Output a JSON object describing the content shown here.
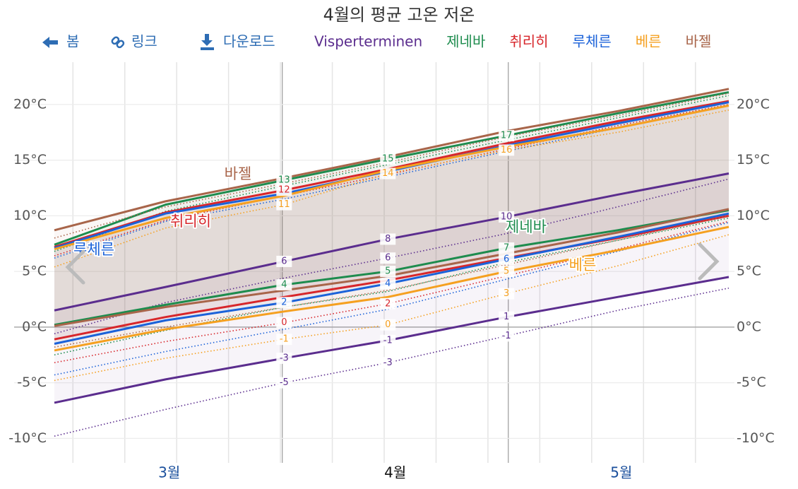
{
  "title": "4월의 평균 고온 저온",
  "toolbar": [
    "봄",
    "링크",
    "다운로드"
  ],
  "chart_data": {
    "type": "line",
    "xlim": [
      0,
      91
    ],
    "x": [
      0,
      15,
      31,
      45,
      61,
      76,
      91
    ],
    "xticks": [
      {
        "value": 15.5,
        "label": "3월"
      },
      {
        "value": 46,
        "label": "4월"
      },
      {
        "value": 76.5,
        "label": "5월"
      }
    ],
    "ylim": [
      -12.2,
      23.8
    ],
    "yticks": [
      {
        "value": -10,
        "label": "-10°C"
      },
      {
        "value": -5,
        "label": "-5°C"
      },
      {
        "value": 0,
        "label": "0°C"
      },
      {
        "value": 5,
        "label": "5°C"
      },
      {
        "value": 10,
        "label": "10°C"
      },
      {
        "value": 15,
        "label": "15°C"
      },
      {
        "value": 20,
        "label": "20°C"
      }
    ],
    "grid": true,
    "series": [
      {
        "name": "Visperterminen",
        "color": "#5b2d8e",
        "high": {
          "values": [
            1.5,
            3.6,
            5.9,
            7.9,
            9.9,
            11.9,
            13.8
          ],
          "value_labels": [
            null,
            null,
            "6",
            "8",
            "10",
            null,
            null
          ]
        },
        "low": {
          "values": [
            -6.8,
            -4.7,
            -2.8,
            -1.2,
            0.9,
            2.7,
            4.5
          ],
          "value_labels": [
            null,
            null,
            "-3",
            "-1",
            "1",
            null,
            null
          ]
        },
        "feels_high": {
          "values": [
            -0.6,
            2.2,
            4.4,
            6.2,
            8.4,
            10.8,
            13.3
          ],
          "value_labels": [
            null,
            null,
            null,
            "6",
            null,
            null,
            null
          ]
        },
        "feels_low": {
          "values": [
            -9.8,
            -7.4,
            -5.0,
            -3.2,
            -0.8,
            1.5,
            3.5
          ],
          "value_labels": [
            null,
            null,
            "-5",
            "-3",
            "-1",
            null,
            null
          ]
        }
      },
      {
        "name": "제네바",
        "color": "#1e8c4e",
        "high": {
          "values": [
            7.4,
            11.0,
            13.2,
            15.1,
            17.2,
            19.2,
            21.1
          ],
          "value_labels": [
            null,
            null,
            "13",
            "15",
            "17",
            null,
            null
          ]
        },
        "low": {
          "values": [
            0.2,
            2.0,
            3.8,
            5.0,
            7.1,
            8.7,
            10.5
          ],
          "value_labels": [
            null,
            null,
            "4",
            "5",
            "7",
            null,
            null
          ]
        },
        "feels_high": {
          "values": [
            6.8,
            10.4,
            12.7,
            14.6,
            16.8,
            18.8,
            20.8
          ],
          "value_labels": [
            null,
            null,
            null,
            null,
            null,
            null,
            null
          ]
        },
        "feels_low": {
          "values": [
            -2.5,
            -0.3,
            1.8,
            3.2,
            5.8,
            7.8,
            9.8
          ],
          "value_labels": [
            null,
            null,
            null,
            null,
            null,
            null,
            null
          ]
        }
      },
      {
        "name": "취리히",
        "color": "#d7262b",
        "high": {
          "values": [
            7.2,
            10.3,
            12.3,
            14.2,
            16.5,
            18.5,
            20.3
          ],
          "value_labels": [
            null,
            null,
            "12",
            null,
            null,
            null,
            null
          ]
        },
        "low": {
          "values": [
            -1.1,
            0.9,
            2.7,
            4.2,
            6.2,
            8.0,
            10.0
          ],
          "value_labels": [
            null,
            null,
            null,
            null,
            null,
            null,
            null
          ]
        },
        "feels_high": {
          "values": [
            6.4,
            9.6,
            11.8,
            13.7,
            16.0,
            18.1,
            20.0
          ],
          "value_labels": [
            null,
            null,
            null,
            null,
            null,
            null,
            null
          ]
        },
        "feels_low": {
          "values": [
            -3.2,
            -1.3,
            0.4,
            2.1,
            4.6,
            7.0,
            9.5
          ],
          "value_labels": [
            null,
            null,
            "0",
            "2",
            null,
            null,
            null
          ]
        }
      },
      {
        "name": "루체른",
        "color": "#1b62d9",
        "high": {
          "values": [
            7.1,
            10.2,
            12.0,
            14.0,
            16.3,
            18.3,
            20.2
          ],
          "value_labels": [
            null,
            null,
            null,
            null,
            null,
            null,
            null
          ]
        },
        "low": {
          "values": [
            -1.5,
            0.6,
            2.2,
            3.9,
            6.1,
            8.1,
            10.2
          ],
          "value_labels": [
            null,
            null,
            "2",
            "4",
            "6",
            null,
            null
          ]
        },
        "feels_high": {
          "values": [
            6.2,
            9.5,
            11.5,
            13.5,
            15.8,
            17.9,
            19.9
          ],
          "value_labels": [
            null,
            null,
            null,
            null,
            null,
            null,
            null
          ]
        },
        "feels_low": {
          "values": [
            -4.3,
            -2.2,
            -0.2,
            1.6,
            4.3,
            6.8,
            9.4
          ],
          "value_labels": [
            null,
            null,
            null,
            null,
            null,
            null,
            null
          ]
        }
      },
      {
        "name": "베른",
        "color": "#f5a020",
        "high": {
          "values": [
            7.0,
            9.8,
            11.8,
            14.1,
            16.2,
            17.9,
            19.9
          ],
          "value_labels": [
            null,
            null,
            null,
            null,
            null,
            null,
            null
          ]
        },
        "low": {
          "values": [
            -2.1,
            -0.2,
            1.4,
            2.7,
            5.0,
            6.9,
            9.0
          ],
          "value_labels": [
            null,
            null,
            null,
            null,
            "5",
            null,
            null
          ]
        },
        "feels_high": {
          "values": [
            5.4,
            8.9,
            11.0,
            13.8,
            15.9,
            17.5,
            19.5
          ],
          "value_labels": [
            null,
            null,
            "11",
            "14",
            "16",
            null,
            null
          ]
        },
        "feels_low": {
          "values": [
            -4.8,
            -2.8,
            -1.1,
            0.2,
            3.0,
            5.5,
            8.3
          ],
          "value_labels": [
            null,
            null,
            "-1",
            "0",
            "3",
            null,
            null
          ]
        }
      },
      {
        "name": "바젤",
        "color": "#a8654a",
        "high": {
          "values": [
            8.7,
            11.3,
            13.4,
            15.3,
            17.6,
            19.4,
            21.4
          ],
          "value_labels": [
            null,
            null,
            null,
            null,
            null,
            null,
            null
          ]
        },
        "low": {
          "values": [
            0.1,
            1.8,
            3.3,
            4.6,
            6.6,
            8.5,
            10.6
          ],
          "value_labels": [
            null,
            null,
            null,
            null,
            null,
            null,
            null
          ]
        },
        "feels_high": {
          "values": [
            8.0,
            10.8,
            12.9,
            14.8,
            17.1,
            19.0,
            21.0
          ],
          "value_labels": [
            null,
            null,
            null,
            null,
            null,
            null,
            null
          ]
        },
        "feels_low": {
          "values": [
            -1.8,
            0.0,
            1.8,
            3.3,
            5.6,
            7.8,
            10.0
          ],
          "value_labels": [
            null,
            null,
            null,
            null,
            null,
            null,
            null
          ]
        }
      }
    ]
  }
}
